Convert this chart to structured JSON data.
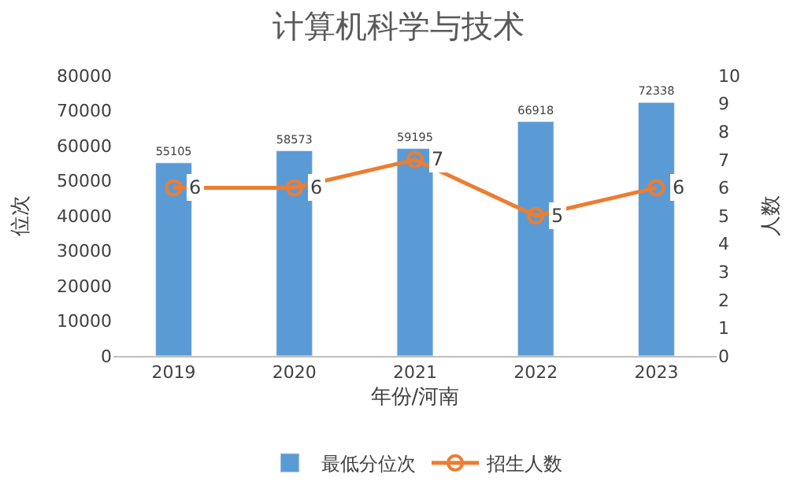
{
  "chart_data": {
    "type": "bar",
    "title": "计算机科学与技术",
    "xlabel": "年份/河南",
    "ylabel": "位次",
    "y2label": "人数",
    "categories": [
      "2019",
      "2020",
      "2021",
      "2022",
      "2023"
    ],
    "series": [
      {
        "name": "最低分位次",
        "color": "#5b9bd5",
        "values": [
          55105,
          58573,
          59195,
          66918,
          72338
        ]
      },
      {
        "name": "招生人数",
        "type": "line",
        "axis": "y2",
        "color": "#ed7d31",
        "values": [
          6,
          6,
          7,
          5,
          6
        ]
      }
    ],
    "ylim": [
      0,
      80000
    ],
    "yticks": [
      0,
      10000,
      20000,
      30000,
      40000,
      50000,
      60000,
      70000,
      80000
    ],
    "y2lim": [
      0,
      10
    ],
    "y2ticks": [
      0,
      1,
      2,
      3,
      4,
      5,
      6,
      7,
      8,
      9,
      10
    ],
    "data_labels": true,
    "legend": "bottom",
    "marker": "circle",
    "line_style": "solid"
  }
}
